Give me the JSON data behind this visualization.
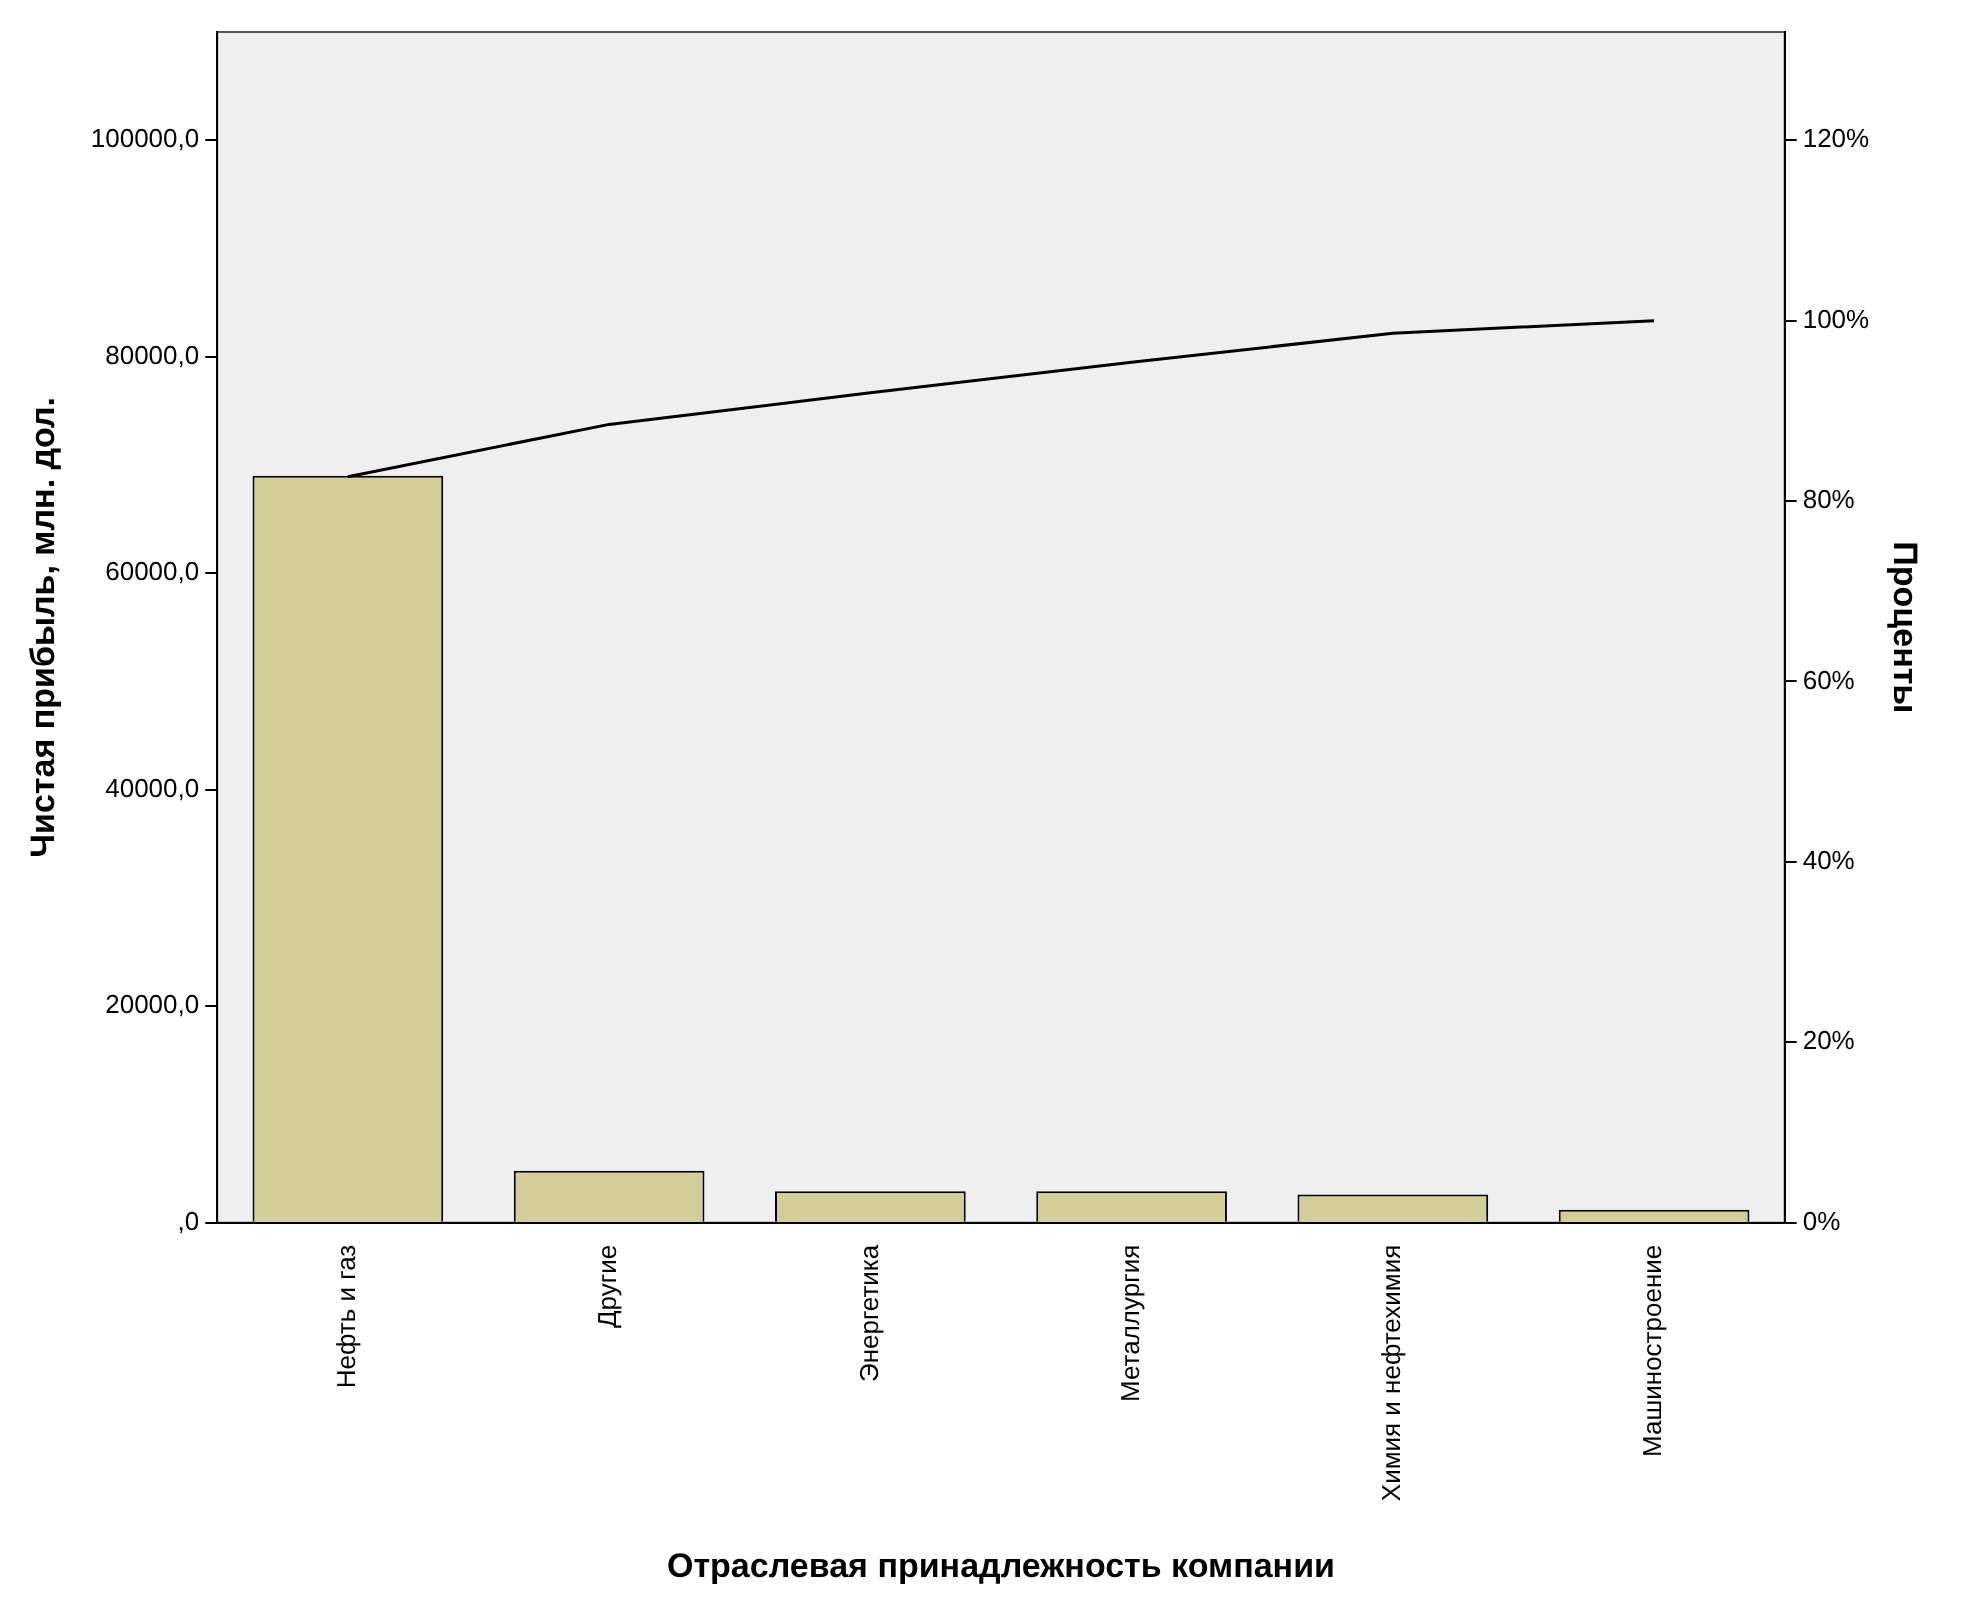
{
  "chart_data": {
    "type": "bar",
    "xlabel": "Отраслевая принадлежность компании",
    "ylabel": "Чистая прибыль, млн. дол.",
    "y2label": "Проценты",
    "categories": [
      "Нефть и газ",
      "Другие",
      "Энергетика",
      "Металлургия",
      "Химия и нефтехимия",
      "Машиностроение"
    ],
    "series": [
      {
        "color": "#d3ce97",
        "values": [
          69000,
          4800,
          2900,
          2900,
          2600,
          1200
        ]
      },
      {
        "type": "line",
        "axis": "y2",
        "color": "#000000",
        "values": [
          82.7,
          88.5,
          92.0,
          95.4,
          98.6,
          100
        ]
      }
    ],
    "ylim": [
      0,
      110000
    ],
    "yticks": [
      {
        "value": 0,
        "label": ",0"
      },
      {
        "value": 20000,
        "label": "20000,0"
      },
      {
        "value": 40000,
        "label": "40000,0"
      },
      {
        "value": 60000,
        "label": "60000,0"
      },
      {
        "value": 80000,
        "label": "80000,0"
      },
      {
        "value": 100000,
        "label": "100000,0"
      }
    ],
    "y2lim": [
      0,
      132
    ],
    "y2ticks": [
      {
        "value": 0,
        "label": "0%"
      },
      {
        "value": 20,
        "label": "20%"
      },
      {
        "value": 40,
        "label": "40%"
      },
      {
        "value": 60,
        "label": "60%"
      },
      {
        "value": 80,
        "label": "80%"
      },
      {
        "value": 100,
        "label": "100%"
      },
      {
        "value": 120,
        "label": "120%"
      }
    ],
    "grid": false,
    "legend": false,
    "marker": "none"
  }
}
